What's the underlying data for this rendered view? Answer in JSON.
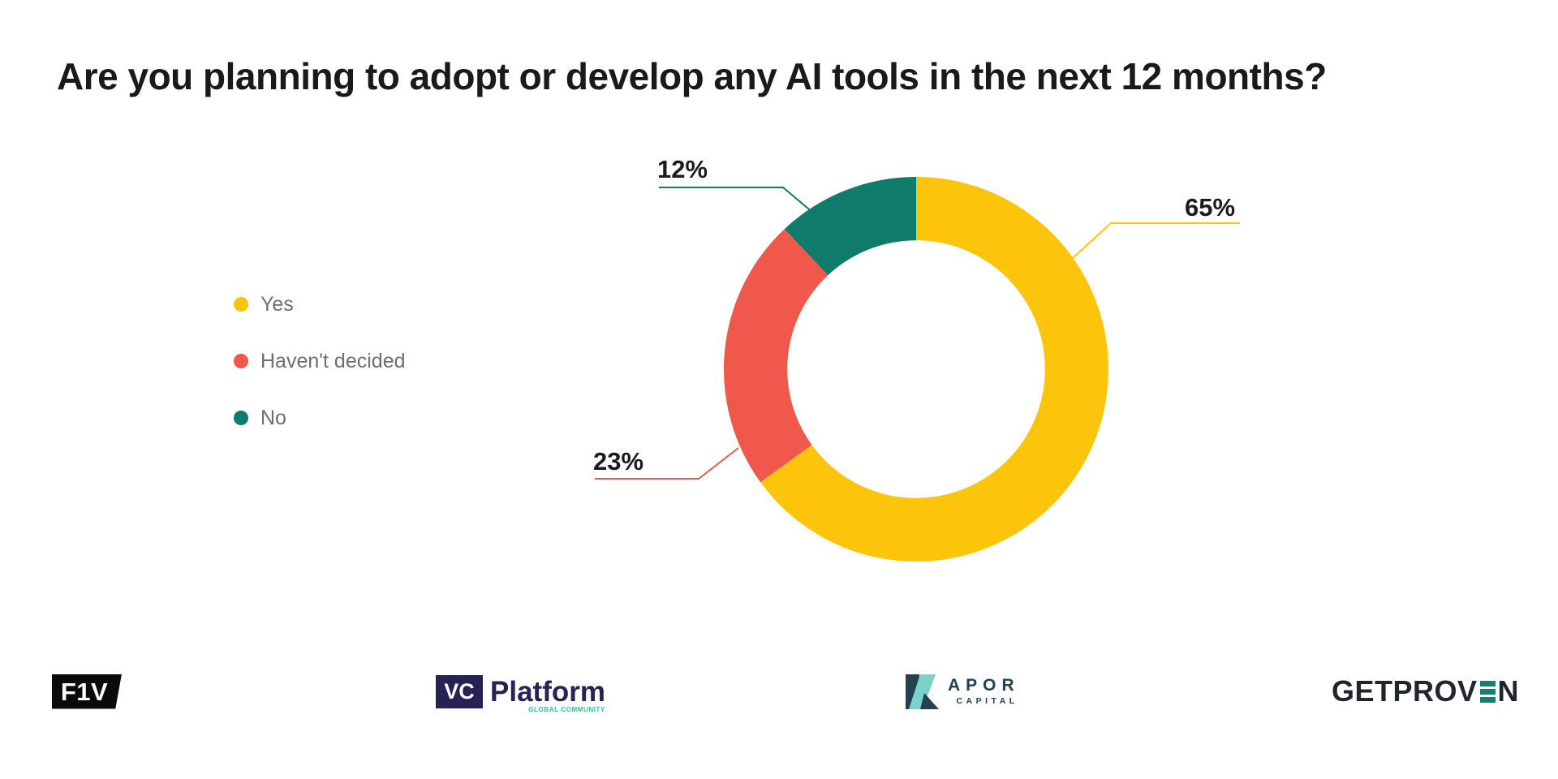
{
  "title": "Are you planning to adopt or develop any AI tools in the next 12 months?",
  "chart_data": {
    "type": "pie",
    "subtype": "donut",
    "title": "Are you planning to adopt or develop any AI tools in the next 12 months?",
    "categories": [
      "Yes",
      "Haven't decided",
      "No"
    ],
    "values": [
      65,
      23,
      12
    ],
    "unit": "%",
    "data_labels": [
      "65%",
      "23%",
      "12%"
    ],
    "colors": [
      "#FCC40B",
      "#EF584B",
      "#0F7B6A"
    ],
    "start_angle": "12 o'clock",
    "direction": "clockwise",
    "inner_radius_ratio": 0.67,
    "hole_color": "#FFFFFF",
    "legend_position": "left",
    "background": "#FFFFFF"
  },
  "legend": {
    "items": [
      {
        "label": "Yes"
      },
      {
        "label": "Haven't decided"
      },
      {
        "label": "No"
      }
    ]
  },
  "footer": {
    "f1v": {
      "text": "F1V",
      "bg": "#0a0a0a",
      "fg": "#ffffff"
    },
    "vc_platform": {
      "badge": "VC",
      "word": "Platform",
      "tagline": "GLOBAL COMMUNITY",
      "navy": "#262254",
      "green": "#35bd8d"
    },
    "kapor": {
      "word": "APOR",
      "sub": "CAPITAL",
      "slate": "#27404f",
      "teal": "#7ad2c8"
    },
    "getproven": {
      "prefix": "GETPROV",
      "suffix": "N",
      "dark": "#21262c",
      "teal": "#157f70"
    }
  }
}
